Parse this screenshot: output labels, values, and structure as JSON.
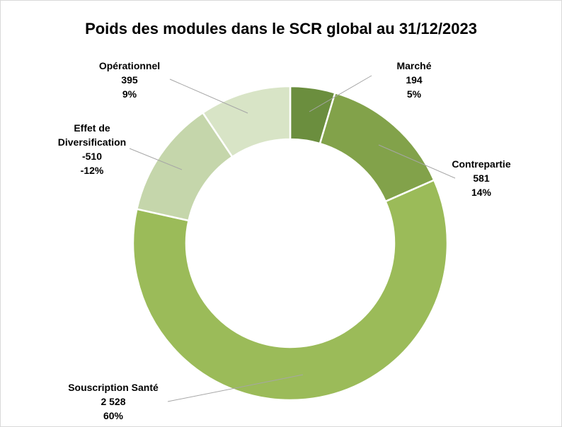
{
  "chart_data": {
    "type": "donut",
    "title": "Poids des modules dans le SCR global au 31/12/2023",
    "categories": [
      "Marché",
      "Contrepartie",
      "Souscription Santé",
      "Effet de Diversification",
      "Opérationnel"
    ],
    "values": [
      194,
      581,
      2528,
      -510,
      395
    ],
    "value_labels": [
      "194",
      "581",
      "2 528",
      "-510",
      "395"
    ],
    "percentages": [
      5,
      14,
      60,
      -12,
      9
    ],
    "percentage_labels": [
      "5%",
      "14%",
      "60%",
      "-12%",
      "9%"
    ],
    "colors": [
      "#6b8e3e",
      "#82a24a",
      "#9bbb59",
      "#c5d6ab",
      "#d8e4c6"
    ]
  }
}
